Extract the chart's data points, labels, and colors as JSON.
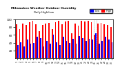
{
  "title": "Milwaukee Weather Outdoor Humidity",
  "subtitle": "Daily High/Low",
  "high_color": "#ff0000",
  "low_color": "#0000ff",
  "background_color": "#ffffff",
  "ylim": [
    0,
    100
  ],
  "yticks": [
    20,
    40,
    60,
    80,
    100
  ],
  "dates": [
    "1",
    "2",
    "3",
    "4",
    "5",
    "6",
    "7",
    "8",
    "9",
    "10",
    "11",
    "12",
    "13",
    "14",
    "15",
    "16",
    "17",
    "18",
    "19",
    "20",
    "21",
    "22",
    "23",
    "24",
    "25",
    "26",
    "27",
    "28",
    "29",
    "30"
  ],
  "highs": [
    88,
    75,
    90,
    85,
    92,
    96,
    88,
    70,
    86,
    89,
    91,
    75,
    93,
    97,
    88,
    94,
    96,
    65,
    90,
    84,
    97,
    95,
    96,
    92,
    60,
    90,
    91,
    88,
    85,
    80
  ],
  "lows": [
    35,
    42,
    30,
    48,
    38,
    40,
    55,
    52,
    30,
    45,
    38,
    60,
    42,
    35,
    55,
    45,
    40,
    50,
    38,
    58,
    52,
    45,
    50,
    48,
    65,
    38,
    45,
    55,
    48,
    42
  ]
}
